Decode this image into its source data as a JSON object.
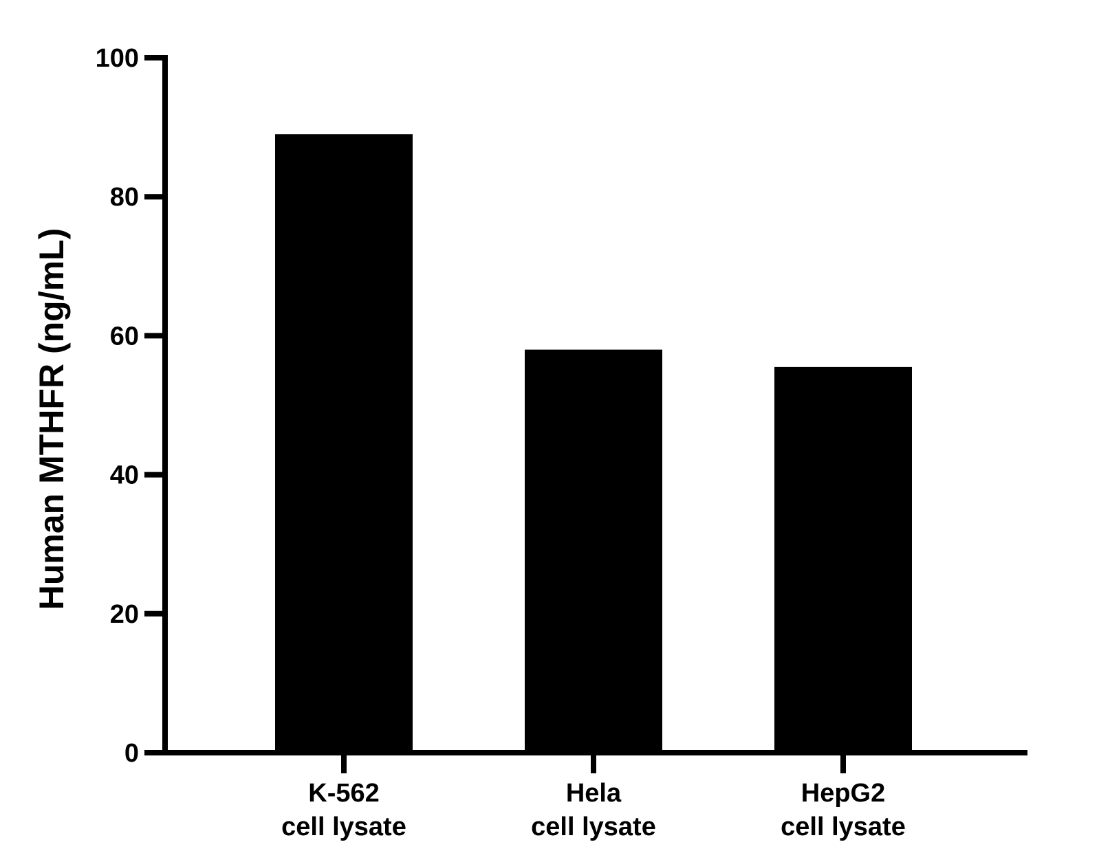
{
  "chart_data": {
    "type": "bar",
    "title": "",
    "xlabel": "",
    "ylabel": "Human MTHFR (ng/mL)",
    "ylim": [
      0,
      100
    ],
    "yticks": [
      0,
      20,
      40,
      60,
      80,
      100
    ],
    "categories": [
      [
        "K-562",
        "cell lysate"
      ],
      [
        "Hela",
        "cell lysate"
      ],
      [
        "HepG2",
        "cell lysate"
      ]
    ],
    "values": [
      89,
      58,
      55.5
    ],
    "bar_color": "#000000",
    "grid": false,
    "legend": "none"
  }
}
